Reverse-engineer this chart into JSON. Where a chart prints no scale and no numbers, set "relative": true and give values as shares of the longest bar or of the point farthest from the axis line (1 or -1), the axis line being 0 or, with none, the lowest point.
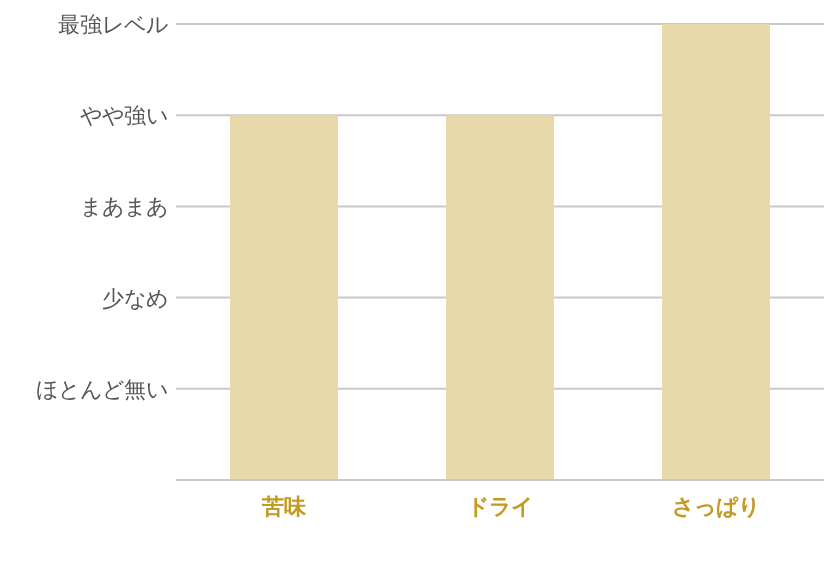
{
  "chart_data": {
    "type": "bar",
    "categories": [
      "苦味",
      "ドライ",
      "さっぱり"
    ],
    "values": [
      0.8,
      0.8,
      1
    ],
    "color": "#e8d9aa",
    "relative": true,
    "ref_lines": [
      {
        "axis": "y",
        "value": 0.2,
        "label": "ほとんど無い",
        "color": "#c8c8c8"
      },
      {
        "axis": "y",
        "value": 0.4,
        "label": "少なめ",
        "color": "#c8c8c8"
      },
      {
        "axis": "y",
        "value": 0.6,
        "label": "まあまあ",
        "color": "#c8c8c8"
      },
      {
        "axis": "y",
        "value": 0.8,
        "label": "やや強い",
        "color": "#c8c8c8"
      },
      {
        "axis": "y",
        "value": 1,
        "label": "最強レベル",
        "color": "#c8c8c8"
      }
    ]
  }
}
